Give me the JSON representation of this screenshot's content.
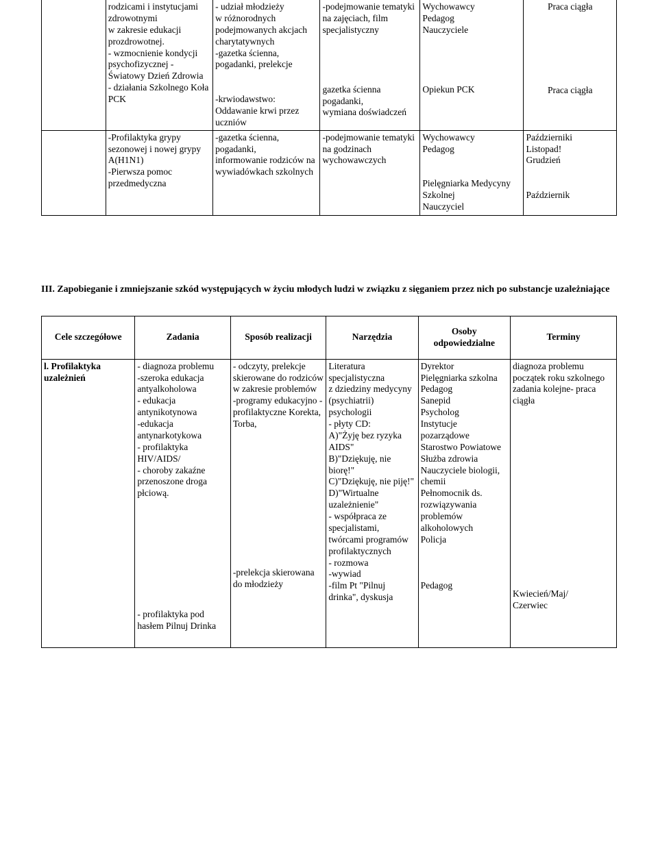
{
  "topTable": {
    "row1": {
      "c1": "rodzicami i instytucjami zdrowotnymi\nw zakresie edukacji prozdrowotnej.\n- wzmocnienie kondycji psychofizycznej -\nŚwiatowy Dzień Zdrowia\n- działania Szkolnego Koła PCK",
      "c2": "- udział młodzieży\nw różnorodnych podejmowanych akcjach charytatywnych\n-gazetka ścienna,\npogadanki, prelekcje\n\n-krwiodawstwo:\nOddawanie krwi przez uczniów",
      "c3a": "-podejmowanie tematyki na zajęciach, film specjalistyczny",
      "c3b": "gazetka ścienna pogadanki,\nwymiana doświadczeń",
      "c4a": "Wychowawcy\nPedagog\nNauczyciele",
      "c4b": "Opiekun PCK",
      "c5a": "Praca ciągła",
      "c5b": "Praca ciągła"
    },
    "row2": {
      "c1": "-Profilaktyka grypy sezonowej i nowej grypy A(H1N1)\n-Pierwsza pomoc przedmedyczna",
      "c2": "-gazetka ścienna, pogadanki,\ninformowanie rodziców na wywiadówkach szkolnych",
      "c3": "-podejmowanie tematyki na godzinach wychowawczych",
      "c4": "Wychowawcy\nPedagog\n\nPielęgniarka Medycyny Szkolnej\nNauczyciel",
      "c5": "Październiki\nListopad!\nGrudzień\n\nPaździernik"
    }
  },
  "sectionHeading": "III. Zapobieganie i zmniejszanie szkód występujących w życiu młodych ludzi w związku z sięganiem przez nich po substancje uzależniające",
  "headers": {
    "h1": "Cele szczegółowe",
    "h2": "Zadania",
    "h3": "Sposób realizacji",
    "h4": "Narzędzia",
    "h5": "Osoby odpowiedzialne",
    "h6": "Terminy"
  },
  "mainRow": {
    "c1": "l. Profilaktyka uzależnień",
    "c2a": "- diagnoza problemu\n-szeroka edukacja antyalkoholowa\n- edukacja antynikotynowa\n-edukacja antynarkotykowa\n- profilaktyka HIV/AIDS/\n- choroby zakaźne przenoszone droga płciową.",
    "c2b": "- profilaktyka pod hasłem Pilnuj Drinka",
    "c3a": "- odczyty, prelekcje skierowane do rodziców w zakresie problemów\n-programy edukacyjno - profilaktyczne Korekta, Torba,",
    "c3b": "-prelekcja skierowana do młodzieży",
    "c4a": "Literatura specjalistyczna\nz dziedziny medycyny (psychiatrii) psychologii\n- płyty CD:\nA)\"Żyję bez ryzyka AIDS\"\nB)\"Dziękuję, nie biorę!\"\nC)\"Dziękuję, nie piję!\"\nD)\"Wirtualne uzależnienie\"\n- współpraca ze specjalistami, twórcami programów profilaktycznych\n- rozmowa\n-wywiad",
    "c4b": "-film Pt \"Pilnuj drinka\", dyskusja",
    "c5a": "Dyrektor\nPielęgniarka szkolna\nPedagog\nSanepid\nPsycholog\nInstytucje pozarządowe\nStarostwo Powiatowe\nSłużba zdrowia\nNauczyciele biologii, chemii\nPełnomocnik ds. rozwiązywania problemów alkoholowych\nPolicja",
    "c5b": "Pedagog",
    "c6a": "diagnoza problemu początek roku szkolnego\nzadania kolejne- praca ciągła",
    "c6b": "Kwiecień/Maj/\nCzerwiec"
  },
  "colors": {
    "text": "#000000",
    "background": "#ffffff",
    "border": "#000000"
  },
  "fonts": {
    "family": "Times New Roman",
    "bodySizePx": 13.5,
    "headingSizePx": 14
  }
}
